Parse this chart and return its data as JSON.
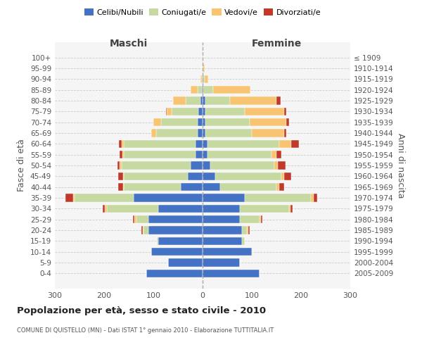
{
  "age_groups": [
    "100+",
    "95-99",
    "90-94",
    "85-89",
    "80-84",
    "75-79",
    "70-74",
    "65-69",
    "60-64",
    "55-59",
    "50-54",
    "45-49",
    "40-44",
    "35-39",
    "30-34",
    "25-29",
    "20-24",
    "15-19",
    "10-14",
    "5-9",
    "0-4"
  ],
  "birth_years": [
    "≤ 1909",
    "1910-1914",
    "1915-1919",
    "1920-1924",
    "1925-1929",
    "1930-1934",
    "1935-1939",
    "1940-1944",
    "1945-1949",
    "1950-1954",
    "1955-1959",
    "1960-1964",
    "1965-1969",
    "1970-1974",
    "1975-1979",
    "1980-1984",
    "1985-1989",
    "1990-1994",
    "1995-1999",
    "2000-2004",
    "2005-2009"
  ],
  "maschi": {
    "celibi": [
      0,
      0,
      0,
      2,
      5,
      8,
      10,
      10,
      15,
      15,
      25,
      30,
      45,
      140,
      90,
      110,
      110,
      90,
      105,
      70,
      115
    ],
    "coniugati": [
      0,
      1,
      2,
      8,
      30,
      55,
      75,
      85,
      145,
      145,
      140,
      130,
      115,
      120,
      105,
      25,
      10,
      3,
      0,
      0,
      0
    ],
    "vedovi": [
      0,
      1,
      2,
      15,
      25,
      10,
      15,
      10,
      5,
      3,
      3,
      2,
      2,
      3,
      3,
      3,
      2,
      0,
      0,
      0,
      0
    ],
    "divorziati": [
      0,
      0,
      0,
      0,
      0,
      2,
      0,
      0,
      5,
      5,
      5,
      10,
      10,
      15,
      5,
      3,
      2,
      0,
      0,
      0,
      0
    ]
  },
  "femmine": {
    "nubili": [
      0,
      0,
      1,
      2,
      5,
      5,
      5,
      5,
      10,
      10,
      15,
      25,
      35,
      85,
      75,
      75,
      80,
      80,
      100,
      75,
      115
    ],
    "coniugate": [
      0,
      1,
      3,
      20,
      50,
      80,
      90,
      95,
      145,
      130,
      130,
      135,
      115,
      135,
      100,
      40,
      10,
      5,
      2,
      0,
      0
    ],
    "vedove": [
      1,
      3,
      8,
      75,
      95,
      80,
      75,
      65,
      25,
      10,
      8,
      5,
      5,
      5,
      3,
      3,
      3,
      0,
      0,
      0,
      0
    ],
    "divorziate": [
      0,
      0,
      0,
      0,
      8,
      5,
      5,
      5,
      15,
      10,
      15,
      15,
      10,
      8,
      5,
      3,
      2,
      0,
      0,
      0,
      0
    ]
  },
  "colors": {
    "celibi": "#4472c4",
    "coniugati": "#c5d9a0",
    "vedovi": "#f8c471",
    "divorziati": "#c0392b"
  },
  "xlim": 300,
  "title": "Popolazione per età, sesso e stato civile - 2010",
  "subtitle": "COMUNE DI QUISTELLO (MN) - Dati ISTAT 1° gennaio 2010 - Elaborazione TUTTITALIA.IT",
  "ylabel_left": "Fasce di età",
  "ylabel_right": "Anni di nascita",
  "xlabel_maschi": "Maschi",
  "xlabel_femmine": "Femmine",
  "bg_color": "#f5f5f5"
}
